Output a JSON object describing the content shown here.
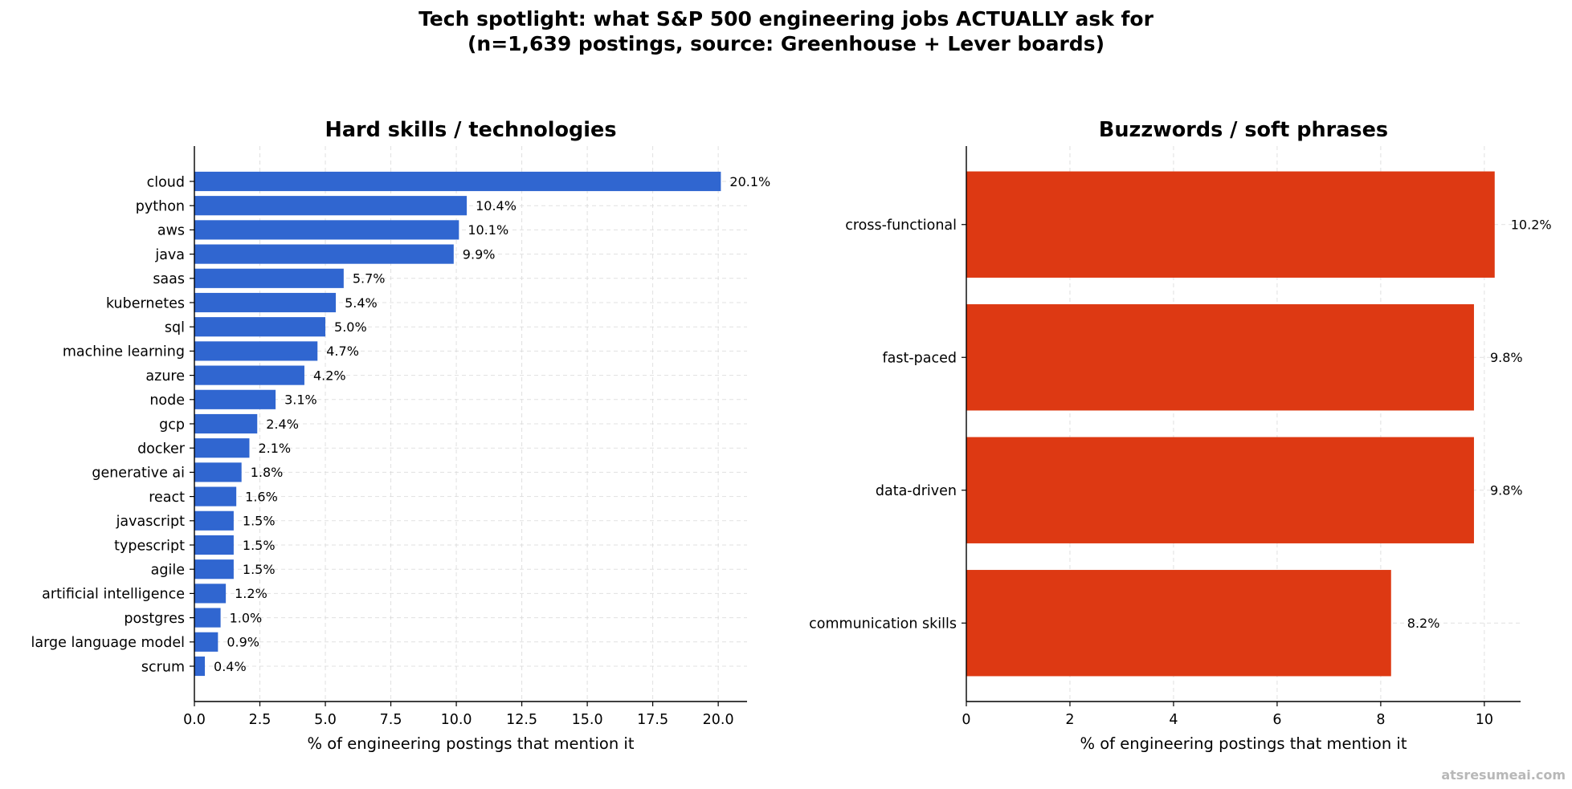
{
  "figure": {
    "title_line1": "Tech spotlight: what S&P 500 engineering jobs ACTUALLY ask for",
    "title_line2": "(n=1,639 postings, source: Greenhouse + Lever boards)",
    "watermark": "atsresumeai.com"
  },
  "chart_data": [
    {
      "type": "bar",
      "orientation": "horizontal",
      "title": "Hard skills / technologies",
      "xlabel": "% of engineering postings that mention it",
      "ylabel": "",
      "xlim": [
        0,
        21.1
      ],
      "xticks": [
        0,
        2.5,
        5,
        7.5,
        10,
        12.5,
        15,
        17.5,
        20
      ],
      "xtick_labels": [
        "0.0",
        "2.5",
        "5.0",
        "7.5",
        "10.0",
        "12.5",
        "15.0",
        "17.5",
        "20.0"
      ],
      "grid": true,
      "color": "#3066d0",
      "categories": [
        "cloud",
        "python",
        "aws",
        "java",
        "saas",
        "kubernetes",
        "sql",
        "machine learning",
        "azure",
        "node",
        "gcp",
        "docker",
        "generative ai",
        "react",
        "javascript",
        "typescript",
        "agile",
        "artificial intelligence",
        "postgres",
        "large language model",
        "scrum"
      ],
      "values": [
        20.1,
        10.4,
        10.1,
        9.9,
        5.7,
        5.4,
        5.0,
        4.7,
        4.2,
        3.1,
        2.4,
        2.1,
        1.8,
        1.6,
        1.5,
        1.5,
        1.5,
        1.2,
        1.0,
        0.9,
        0.4
      ],
      "value_labels": [
        "20.1%",
        "10.4%",
        "10.1%",
        "9.9%",
        "5.7%",
        "5.4%",
        "5.0%",
        "4.7%",
        "4.2%",
        "3.1%",
        "2.4%",
        "2.1%",
        "1.8%",
        "1.6%",
        "1.5%",
        "1.5%",
        "1.5%",
        "1.2%",
        "1.0%",
        "0.9%",
        "0.4%"
      ]
    },
    {
      "type": "bar",
      "orientation": "horizontal",
      "title": "Buzzwords / soft phrases",
      "xlabel": "% of engineering postings that mention it",
      "ylabel": "",
      "xlim": [
        0,
        10.7
      ],
      "xticks": [
        0,
        2,
        4,
        6,
        8,
        10
      ],
      "xtick_labels": [
        "0",
        "2",
        "4",
        "6",
        "8",
        "10"
      ],
      "grid": true,
      "color": "#dd3913",
      "categories": [
        "cross-functional",
        "fast-paced",
        "data-driven",
        "communication skills"
      ],
      "values": [
        10.2,
        9.8,
        9.8,
        8.2
      ],
      "value_labels": [
        "10.2%",
        "9.8%",
        "9.8%",
        "8.2%"
      ]
    }
  ]
}
